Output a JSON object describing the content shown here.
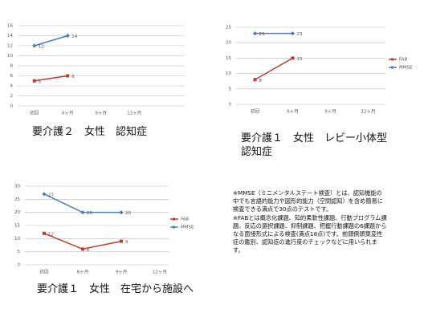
{
  "chart_data": [
    {
      "type": "line",
      "caption": "要介護２　女性　認知症",
      "categories": [
        "初回",
        "6ヶ月",
        "9ヶ月",
        "12ヶ月"
      ],
      "series": [
        {
          "color": "#c0392b",
          "marker": "square",
          "values": [
            5,
            6,
            null,
            null
          ]
        },
        {
          "color": "#4a7ebb",
          "marker": "diamond",
          "values": [
            12,
            14,
            null,
            null
          ]
        }
      ],
      "ylim": [
        0,
        16
      ],
      "yticks": [
        0,
        2,
        4,
        6,
        8,
        10,
        12,
        14,
        16
      ],
      "grid": true
    },
    {
      "type": "line",
      "caption": "要介護１　女性　レビー小体型認知症",
      "categories": [
        "初回",
        "6ヶ月",
        "9ヶ月",
        "12ヶ月"
      ],
      "series": [
        {
          "name": "FAB",
          "color": "#c0392b",
          "marker": "square",
          "values": [
            8,
            15,
            null,
            null
          ]
        },
        {
          "name": "MMSE",
          "color": "#4a7ebb",
          "marker": "diamond",
          "values": [
            23,
            23,
            null,
            null
          ]
        }
      ],
      "ylim": [
        0,
        25
      ],
      "yticks": [
        0,
        5,
        10,
        15,
        20,
        25
      ],
      "grid": true,
      "legend": "right"
    },
    {
      "type": "line",
      "caption": "要介護１　女性　在宅から施設へ",
      "categories": [
        "初回",
        "6ヶ月",
        "9ヶ月",
        "12ヶ月"
      ],
      "series": [
        {
          "name": "FAB",
          "color": "#c0392b",
          "marker": "square",
          "values": [
            12,
            6,
            9,
            null
          ]
        },
        {
          "name": "MMSE",
          "color": "#4a7ebb",
          "marker": "diamond",
          "values": [
            27,
            20,
            20,
            null
          ]
        }
      ],
      "ylim": [
        0,
        30
      ],
      "yticks": [
        0,
        5,
        10,
        15,
        20,
        25,
        30
      ],
      "grid": true,
      "legend": "right"
    }
  ],
  "note": [
    "※MMSE（ミニメンタルステート検査）とは、認知機能の中でも言語的能力や図形的能力（空間認知）を含め簡易に検査できる満点で30点のテストです。",
    "※FABとは概念化課題、知的柔軟性課題、行動プログラム課題、反応の選択課題、抑制課題、把握行動課題の6課題からなる面接形式による検査(満点18点)です。前頭側頭葉変性症の鑑別、認知症の進行度のチェックなどに用いられます。"
  ]
}
